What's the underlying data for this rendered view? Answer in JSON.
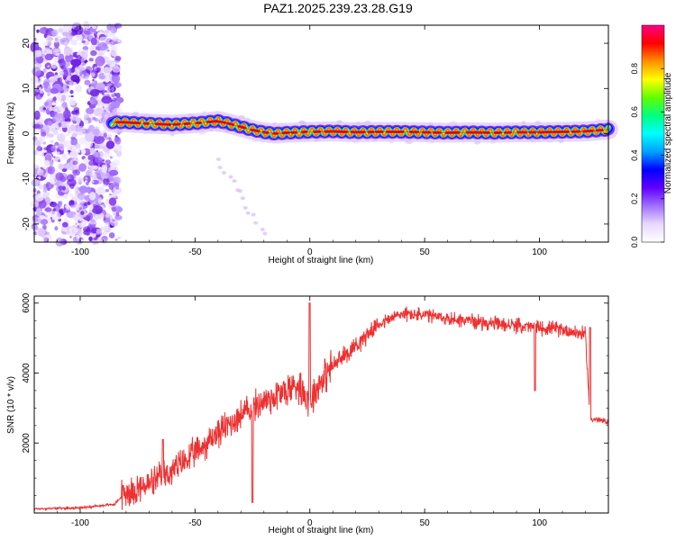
{
  "figure": {
    "title": "PAZ1.2025.239.23.28.G19"
  },
  "chart_data": [
    {
      "type": "heatmap",
      "name": "spectrogram",
      "xlabel": "Height of straight line (km)",
      "ylabel": "Frequency (Hz)",
      "xlim": [
        -120,
        130
      ],
      "ylim": [
        -24,
        24
      ],
      "x_ticks": [
        -100,
        -50,
        0,
        50,
        100
      ],
      "y_ticks": [
        -20,
        -10,
        0,
        10,
        20
      ],
      "grid": false,
      "colormap": [
        "#ffffff",
        "#e8d8ff",
        "#a070ff",
        "#6000ff",
        "#0000ff",
        "#00a0ff",
        "#00ffff",
        "#00ff80",
        "#60ff00",
        "#ffff00",
        "#ff9000",
        "#ff0000",
        "#ff0080"
      ],
      "colorbar": {
        "label": "Normalized spectral amplitude",
        "range": [
          0,
          1
        ],
        "ticks": [
          "0.0",
          "0.2",
          "0.4",
          "0.6",
          "0.8"
        ]
      },
      "ridge": {
        "x": [
          -86,
          -80,
          -70,
          -60,
          -50,
          -40,
          -35,
          -30,
          -25,
          -20,
          -15,
          -10,
          0,
          10,
          20,
          30,
          40,
          50,
          60,
          70,
          80,
          90,
          100,
          110,
          120,
          130
        ],
        "y": [
          2.5,
          2.5,
          2.2,
          2.0,
          2.3,
          2.8,
          2.2,
          1.5,
          0.8,
          0.3,
          0.0,
          0.2,
          0.4,
          0.5,
          0.3,
          0.4,
          0.4,
          0.3,
          0.2,
          0.3,
          0.2,
          0.3,
          0.3,
          0.4,
          0.5,
          0.9
        ]
      },
      "noise_region_x": [
        -120,
        -83
      ],
      "faint_trace": {
        "x": [
          -40,
          -20
        ],
        "y": [
          -6,
          -22
        ]
      }
    },
    {
      "type": "line",
      "name": "snr",
      "xlabel": "Height of straight line (km)",
      "ylabel": "SNR (10 * v/v)",
      "xlim": [
        -120,
        130
      ],
      "ylim": [
        0,
        6200
      ],
      "x_ticks": [
        -100,
        -50,
        0,
        50,
        100
      ],
      "y_ticks": [
        2000,
        4000,
        6000
      ],
      "grid": false,
      "color": "#ee3030",
      "series": [
        {
          "x": [
            -120,
            -100,
            -85,
            -80,
            -70,
            -60,
            -50,
            -40,
            -30,
            -20,
            -10,
            -5,
            0,
            5,
            10,
            20,
            30,
            40,
            50,
            60,
            70,
            80,
            90,
            100,
            110,
            120,
            122,
            130
          ],
          "values": [
            120,
            150,
            250,
            600,
            800,
            1200,
            1700,
            2300,
            2800,
            3200,
            3500,
            3700,
            3200,
            3800,
            4200,
            4800,
            5400,
            5700,
            5650,
            5550,
            5500,
            5400,
            5350,
            5300,
            5250,
            5100,
            2700,
            2600
          ]
        }
      ],
      "spikes": [
        {
          "x": 0,
          "value": 6000
        },
        {
          "x": -64,
          "value": 2100
        },
        {
          "x": -25,
          "value": 300
        },
        {
          "x": 98,
          "value": 3500
        },
        {
          "x": 122,
          "value": 5300
        }
      ]
    }
  ]
}
